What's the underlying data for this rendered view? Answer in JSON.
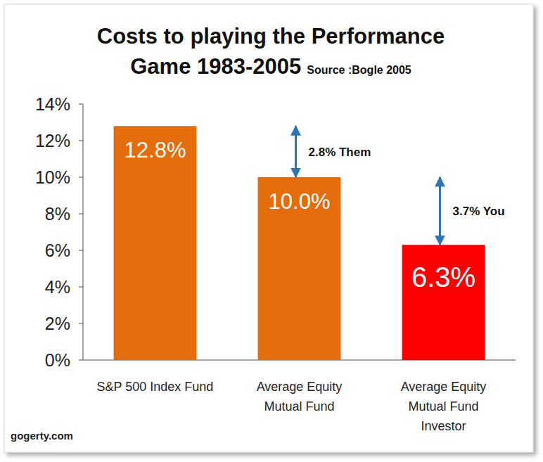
{
  "chart_data": {
    "type": "bar",
    "title": "Costs to playing the Performance\nGame 1983-2005",
    "subtitle": "Source :Bogle 2005",
    "source": "gogerty.com",
    "categories": [
      "S&P 500 Index Fund",
      "Average Equity\nMutual Fund",
      "Average Equity\nMutual Fund\nInvestor"
    ],
    "values": [
      12.8,
      10.0,
      6.3
    ],
    "value_labels": [
      "12.8%",
      "10.0%",
      "6.3%"
    ],
    "colors": [
      "#e46c0a",
      "#e46c0a",
      "#ff0000"
    ],
    "data_labels": true,
    "grid": false,
    "ylim": [
      0,
      14
    ],
    "yticks": [
      {
        "value": 0,
        "label": "0%"
      },
      {
        "value": 2,
        "label": "2%"
      },
      {
        "value": 4,
        "label": "4%"
      },
      {
        "value": 6,
        "label": "6%"
      },
      {
        "value": 8,
        "label": "8%"
      },
      {
        "value": 10,
        "label": "10%"
      },
      {
        "value": 12,
        "label": "12%"
      },
      {
        "value": 14,
        "label": "14%"
      }
    ],
    "annotations": [
      {
        "text": "2.8% Them",
        "from": 12.8,
        "to": 10.0
      },
      {
        "text": "3.7% You",
        "from": 10.0,
        "to": 6.3
      }
    ]
  }
}
